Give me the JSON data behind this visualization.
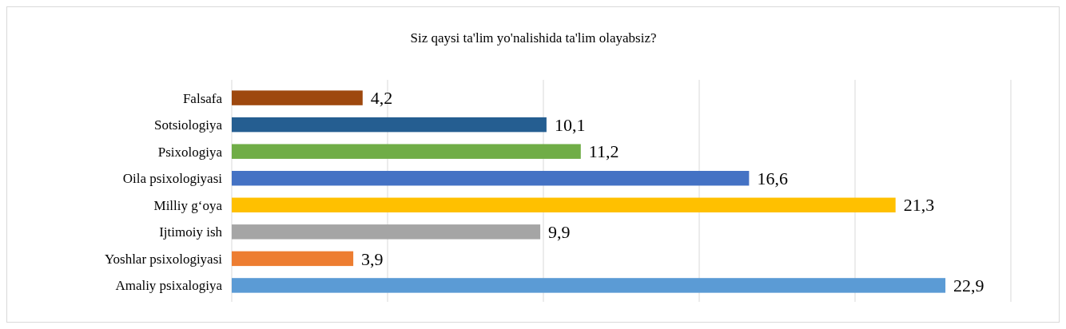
{
  "chart_data": {
    "type": "bar",
    "orientation": "horizontal",
    "title": "Siz qaysi ta'lim yo'nalishida ta'lim olayabsiz?",
    "categories": [
      "Falsafa",
      "Sotsiologiya",
      "Psixologiya",
      "Oila psixologiyasi",
      "Milliy g‘oya",
      "Ijtimoiy ish",
      "Yoshlar psixologiyasi",
      "Amaliy psixalogiya"
    ],
    "values": [
      4.2,
      10.1,
      11.2,
      16.6,
      21.3,
      9.9,
      3.9,
      22.9
    ],
    "value_labels": [
      "4,2",
      "10,1",
      "11,2",
      "16,6",
      "21,3",
      "9,9",
      "3,9",
      "22,9"
    ],
    "colors": [
      "#9e480e",
      "#255e91",
      "#70ad47",
      "#4472c4",
      "#ffc000",
      "#a5a5a5",
      "#ed7d31",
      "#5b9bd5"
    ],
    "xlim": [
      0,
      25
    ],
    "xticks": [
      {
        "value": 0,
        "label": null
      },
      {
        "value": 5,
        "label": null
      },
      {
        "value": 10,
        "label": null
      },
      {
        "value": 15,
        "label": null
      },
      {
        "value": 20,
        "label": null
      },
      {
        "value": 25,
        "label": null
      }
    ],
    "grid": "x",
    "tick_labels": "y"
  }
}
